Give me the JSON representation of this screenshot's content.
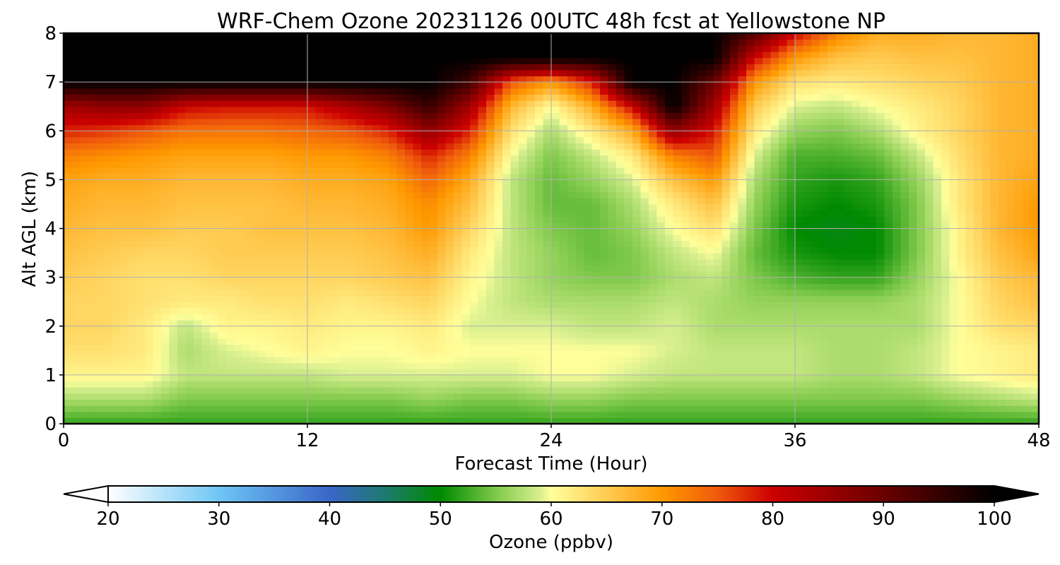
{
  "chart_data": {
    "type": "heatmap",
    "title": "WRF-Chem Ozone  20231126 00UTC 48h fcst at Yellowstone NP",
    "xlabel": "Forecast Time (Hour)",
    "ylabel": "Alt AGL (km)",
    "xlim": [
      0,
      48
    ],
    "ylim": [
      0,
      8
    ],
    "x_ticks": [
      "0",
      "12",
      "24",
      "36",
      "48"
    ],
    "y_ticks": [
      "0",
      "1",
      "2",
      "3",
      "4",
      "5",
      "6",
      "7",
      "8"
    ],
    "grid": true,
    "x": [
      0,
      2,
      4,
      6,
      8,
      10,
      12,
      14,
      16,
      18,
      20,
      22,
      24,
      26,
      28,
      30,
      32,
      34,
      36,
      38,
      40,
      42,
      44,
      46,
      48
    ],
    "y": [
      0,
      0.5,
      1,
      1.5,
      2,
      2.5,
      3,
      3.5,
      4,
      4.5,
      5,
      5.5,
      6,
      6.5,
      7,
      7.5,
      8
    ],
    "z": [
      [
        52,
        52,
        52,
        52,
        52,
        52,
        52,
        52,
        52,
        52,
        52,
        52,
        52,
        52,
        52,
        52,
        52,
        52,
        52,
        52,
        52,
        52,
        52,
        52,
        52
      ],
      [
        57,
        57,
        57,
        55,
        55,
        55,
        55,
        55,
        55,
        56,
        55,
        55,
        56,
        56,
        55,
        55,
        55,
        55,
        55,
        55,
        55,
        55,
        56,
        57,
        58
      ],
      [
        61,
        61,
        61,
        58,
        58,
        58,
        58,
        59,
        59,
        59,
        59,
        59,
        60,
        60,
        59,
        58,
        58,
        58,
        58,
        57,
        57,
        58,
        60,
        61,
        62
      ],
      [
        63,
        63,
        62,
        57,
        59,
        60,
        61,
        60,
        60,
        61,
        60,
        60,
        60,
        60,
        60,
        59,
        58,
        58,
        58,
        57,
        57,
        58,
        60,
        61,
        62
      ],
      [
        64,
        64,
        62,
        58,
        61,
        61,
        62,
        61,
        61,
        62,
        59,
        59,
        59,
        58,
        58,
        59,
        57,
        57,
        57,
        57,
        57,
        57,
        60,
        63,
        64
      ],
      [
        64,
        64,
        63,
        62,
        62,
        63,
        63,
        62,
        63,
        64,
        60,
        58,
        57,
        57,
        57,
        58,
        57,
        56,
        56,
        56,
        56,
        57,
        60,
        64,
        66
      ],
      [
        65,
        64,
        63,
        63,
        64,
        64,
        64,
        64,
        65,
        66,
        61,
        58,
        56,
        55,
        55,
        57,
        58,
        55,
        53,
        52,
        52,
        56,
        60,
        65,
        67
      ],
      [
        66,
        65,
        64,
        64,
        65,
        65,
        65,
        65,
        66,
        68,
        62,
        58,
        56,
        54,
        55,
        58,
        60,
        54,
        51,
        50,
        50,
        55,
        61,
        66,
        69
      ],
      [
        67,
        66,
        66,
        65,
        65,
        66,
        66,
        66,
        67,
        70,
        64,
        58,
        55,
        54,
        56,
        60,
        63,
        55,
        50,
        49,
        50,
        55,
        61,
        67,
        70
      ],
      [
        68,
        67,
        67,
        66,
        66,
        66,
        67,
        67,
        68,
        71,
        66,
        58,
        54,
        54,
        57,
        62,
        66,
        56,
        51,
        50,
        51,
        55,
        62,
        67,
        70
      ],
      [
        69,
        68,
        68,
        67,
        67,
        67,
        68,
        68,
        69,
        74,
        68,
        58,
        54,
        56,
        59,
        66,
        70,
        57,
        52,
        51,
        52,
        56,
        62,
        67,
        69
      ],
      [
        72,
        71,
        70,
        69,
        69,
        69,
        70,
        70,
        72,
        78,
        72,
        60,
        55,
        58,
        62,
        72,
        75,
        59,
        53,
        53,
        54,
        58,
        63,
        67,
        68
      ],
      [
        78,
        77,
        75,
        73,
        73,
        73,
        74,
        75,
        78,
        86,
        78,
        63,
        57,
        62,
        68,
        86,
        79,
        62,
        56,
        55,
        57,
        61,
        64,
        67,
        68
      ],
      [
        84,
        86,
        86,
        80,
        79,
        79,
        79,
        83,
        88,
        95,
        84,
        67,
        60,
        68,
        80,
        100,
        84,
        65,
        59,
        58,
        60,
        62,
        64,
        67,
        68
      ],
      [
        100,
        100,
        100,
        100,
        100,
        100,
        100,
        100,
        100,
        100,
        94,
        75,
        70,
        78,
        100,
        100,
        90,
        70,
        63,
        62,
        63,
        64,
        65,
        67,
        68
      ],
      [
        100,
        100,
        100,
        100,
        100,
        100,
        100,
        100,
        100,
        100,
        100,
        100,
        100,
        100,
        100,
        100,
        100,
        80,
        70,
        66,
        65,
        66,
        66,
        67,
        68
      ],
      [
        100,
        100,
        100,
        100,
        100,
        100,
        100,
        100,
        100,
        100,
        100,
        100,
        100,
        100,
        100,
        100,
        100,
        92,
        80,
        72,
        68,
        68,
        67,
        67,
        68
      ]
    ],
    "colorbar": {
      "label": "Ozone  (ppbv)",
      "min": 20,
      "max": 100,
      "tick_values": [
        20,
        30,
        40,
        50,
        60,
        70,
        80,
        90,
        100
      ],
      "ticks": [
        "20",
        "30",
        "40",
        "50",
        "60",
        "70",
        "80",
        "90",
        "100"
      ],
      "extend": "both",
      "colors": [
        [
          20,
          "#ffffff"
        ],
        [
          30,
          "#6ec6f5"
        ],
        [
          40,
          "#3a66c8"
        ],
        [
          45,
          "#1d7a6e"
        ],
        [
          50,
          "#008a00"
        ],
        [
          55,
          "#7fc94a"
        ],
        [
          59,
          "#d8ef8f"
        ],
        [
          60,
          "#ffff9a"
        ],
        [
          63,
          "#ffe070"
        ],
        [
          67,
          "#ffb733"
        ],
        [
          70,
          "#ff9900"
        ],
        [
          75,
          "#ef5a0c"
        ],
        [
          80,
          "#cc0000"
        ],
        [
          90,
          "#6a0000"
        ],
        [
          100,
          "#000000"
        ]
      ]
    }
  }
}
